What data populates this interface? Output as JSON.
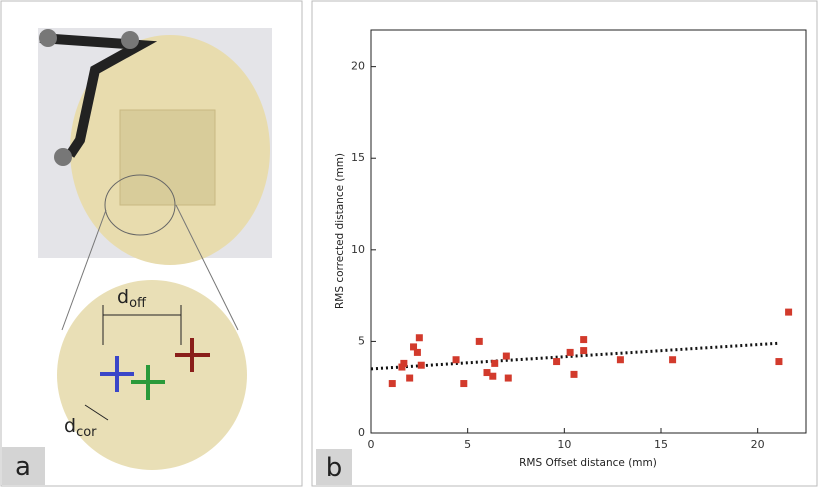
{
  "panel_a": {
    "label": "a",
    "d_off": {
      "main": "d",
      "sub": "off"
    },
    "d_cor": {
      "main": "d",
      "sub": "cor"
    }
  },
  "chart_data": {
    "type": "scatter",
    "panel_label": "b",
    "xlabel": "RMS Offset distance (mm)",
    "ylabel": "RMS corrected distance (mm)",
    "x": [
      1.1,
      1.6,
      1.7,
      2.0,
      2.2,
      2.4,
      2.5,
      2.6,
      4.4,
      4.8,
      5.6,
      6.0,
      6.3,
      6.4,
      7.0,
      7.1,
      9.6,
      10.3,
      10.5,
      11.0,
      11.0,
      12.9,
      15.6,
      21.1,
      21.6
    ],
    "y": [
      2.7,
      3.6,
      3.8,
      3.0,
      4.7,
      4.4,
      5.2,
      3.7,
      4.0,
      2.7,
      5.0,
      3.3,
      3.1,
      3.8,
      4.2,
      3.0,
      3.9,
      4.4,
      3.2,
      5.1,
      4.5,
      4.0,
      4.0,
      3.9,
      6.6
    ],
    "color": "#d23a2c",
    "trendline": {
      "x": [
        0,
        21.1
      ],
      "y": [
        3.5,
        4.9
      ],
      "color": "#111111"
    },
    "xlim": [
      0,
      22.5
    ],
    "ylim": [
      0,
      22
    ],
    "xticks": [
      0,
      5,
      10,
      15,
      20
    ],
    "yticks": [
      0,
      5,
      10,
      15,
      20
    ]
  }
}
